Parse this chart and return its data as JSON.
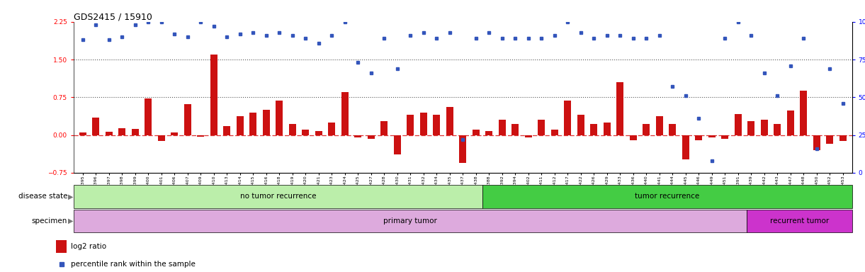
{
  "title": "GDS2415 / 15910",
  "samples": [
    "GSM110395",
    "GSM110396",
    "GSM110397",
    "GSM110398",
    "GSM110399",
    "GSM110400",
    "GSM110401",
    "GSM110406",
    "GSM110407",
    "GSM110409",
    "GSM110410",
    "GSM110413",
    "GSM110414",
    "GSM110415",
    "GSM110416",
    "GSM110418",
    "GSM110419",
    "GSM110420",
    "GSM110421",
    "GSM110423",
    "GSM110424",
    "GSM110425",
    "GSM110427",
    "GSM110428",
    "GSM110430",
    "GSM110431",
    "GSM110432",
    "GSM110434",
    "GSM110435",
    "GSM110437",
    "GSM110438",
    "GSM110388",
    "GSM110392",
    "GSM110394",
    "GSM110402",
    "GSM110411",
    "GSM110412",
    "GSM110417",
    "GSM110422",
    "GSM110426",
    "GSM110429",
    "GSM110433",
    "GSM110436",
    "GSM110440",
    "GSM110441",
    "GSM110444",
    "GSM110445",
    "GSM110446",
    "GSM110449",
    "GSM110451",
    "GSM110391",
    "GSM110439",
    "GSM110442",
    "GSM110443",
    "GSM110447",
    "GSM110448",
    "GSM110450",
    "GSM110452",
    "GSM110453"
  ],
  "log2_ratio": [
    0.05,
    0.35,
    0.07,
    0.13,
    0.12,
    0.72,
    -0.12,
    0.05,
    0.62,
    -0.03,
    1.6,
    0.18,
    0.38,
    0.45,
    0.5,
    0.68,
    0.22,
    0.1,
    0.08,
    0.25,
    0.85,
    -0.05,
    -0.08,
    0.28,
    -0.38,
    0.4,
    0.45,
    0.4,
    0.55,
    -0.55,
    0.1,
    0.08,
    0.3,
    0.22,
    -0.05,
    0.3,
    0.1,
    0.68,
    0.4,
    0.22,
    0.25,
    1.05,
    -0.1,
    0.22,
    0.38,
    0.22,
    -0.48,
    -0.1,
    -0.05,
    -0.08,
    0.42,
    0.28,
    0.3,
    0.22,
    0.48,
    0.88,
    -0.3,
    -0.18,
    -0.12
  ],
  "percentile": [
    88,
    98,
    88,
    90,
    98,
    100,
    100,
    92,
    90,
    100,
    97,
    90,
    92,
    93,
    91,
    93,
    91,
    89,
    86,
    91,
    100,
    73,
    66,
    89,
    69,
    91,
    93,
    89,
    93,
    22,
    89,
    93,
    89,
    89,
    89,
    89,
    91,
    100,
    93,
    89,
    91,
    91,
    89,
    89,
    91,
    57,
    51,
    36,
    8,
    89,
    100,
    91,
    66,
    51,
    71,
    89,
    16,
    69,
    46
  ],
  "no_recurrence_count": 31,
  "primary_tumor_count": 51,
  "ylim_left": [
    -0.75,
    2.25
  ],
  "ylim_right": [
    0,
    100
  ],
  "yticks_left": [
    -0.75,
    0.0,
    0.75,
    1.5,
    2.25
  ],
  "yticks_right": [
    0,
    25,
    50,
    75,
    100
  ],
  "hlines": [
    0.75,
    1.5
  ],
  "bar_color": "#cc1111",
  "dot_color": "#3355bb",
  "zero_line_color": "#dd3333",
  "hline_color": "#555555",
  "disease_state_no_recurrence_color": "#bbeeaa",
  "disease_state_recurrence_color": "#44cc44",
  "specimen_primary_color": "#ddaadd",
  "specimen_recurrent_color": "#cc33cc",
  "background_color": "#ffffff",
  "title_fontsize": 9,
  "tick_fontsize": 6.5,
  "label_fontsize": 7.5
}
